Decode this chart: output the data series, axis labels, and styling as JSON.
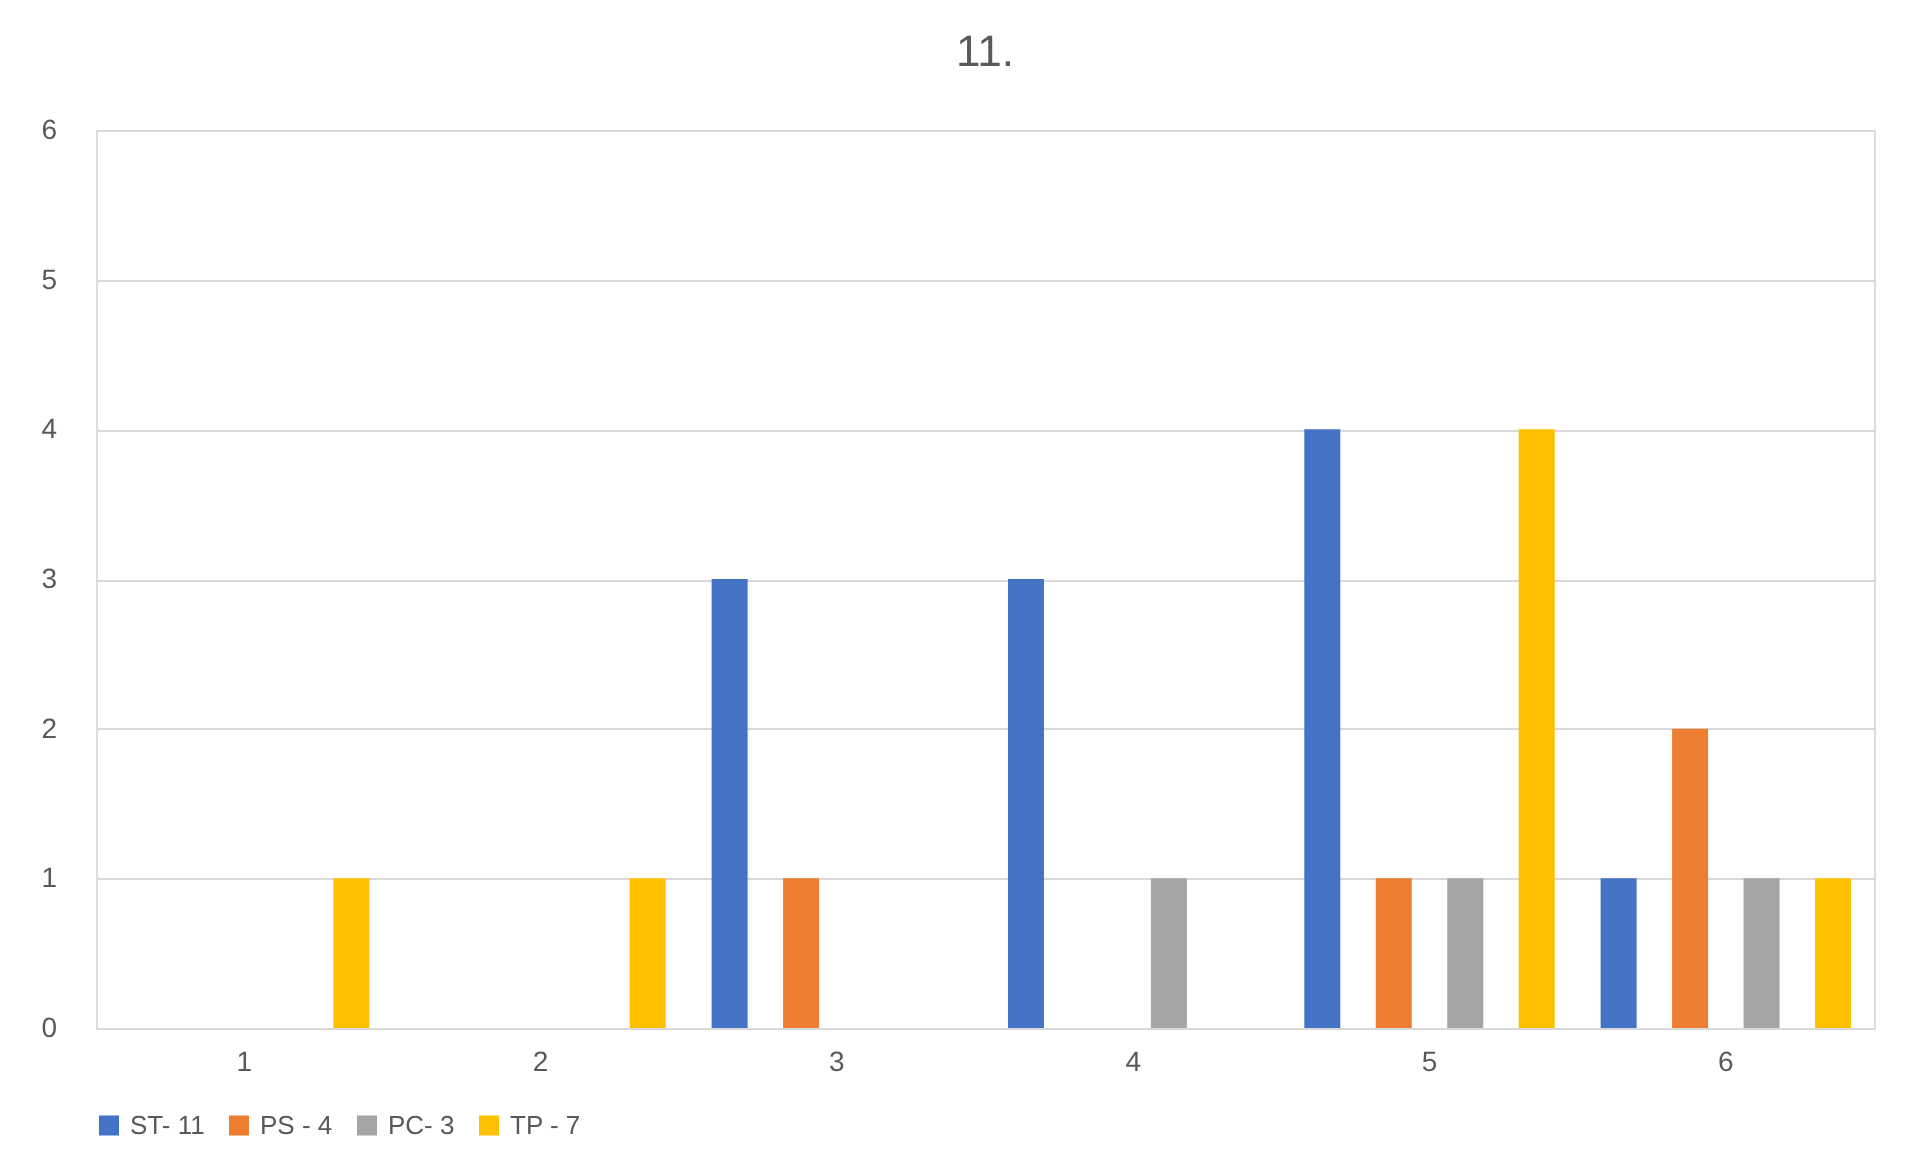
{
  "chart_data": {
    "type": "bar",
    "title": "11.",
    "categories": [
      "1",
      "2",
      "3",
      "4",
      "5",
      "6"
    ],
    "series": [
      {
        "name": "ST- 11",
        "color": "#4472c4",
        "values": [
          0,
          0,
          3,
          3,
          4,
          1
        ]
      },
      {
        "name": "PS - 4",
        "color": "#ed7d31",
        "values": [
          0,
          0,
          1,
          0,
          1,
          2
        ]
      },
      {
        "name": "PC- 3",
        "color": "#a5a5a5",
        "values": [
          0,
          0,
          0,
          1,
          1,
          1
        ]
      },
      {
        "name": "TP - 7",
        "color": "#ffc000",
        "values": [
          1,
          1,
          0,
          0,
          4,
          1
        ]
      }
    ],
    "ylim": [
      0,
      6
    ],
    "yticks": [
      0,
      1,
      2,
      3,
      4,
      5,
      6
    ],
    "grid": "y",
    "legend": "bottom"
  }
}
